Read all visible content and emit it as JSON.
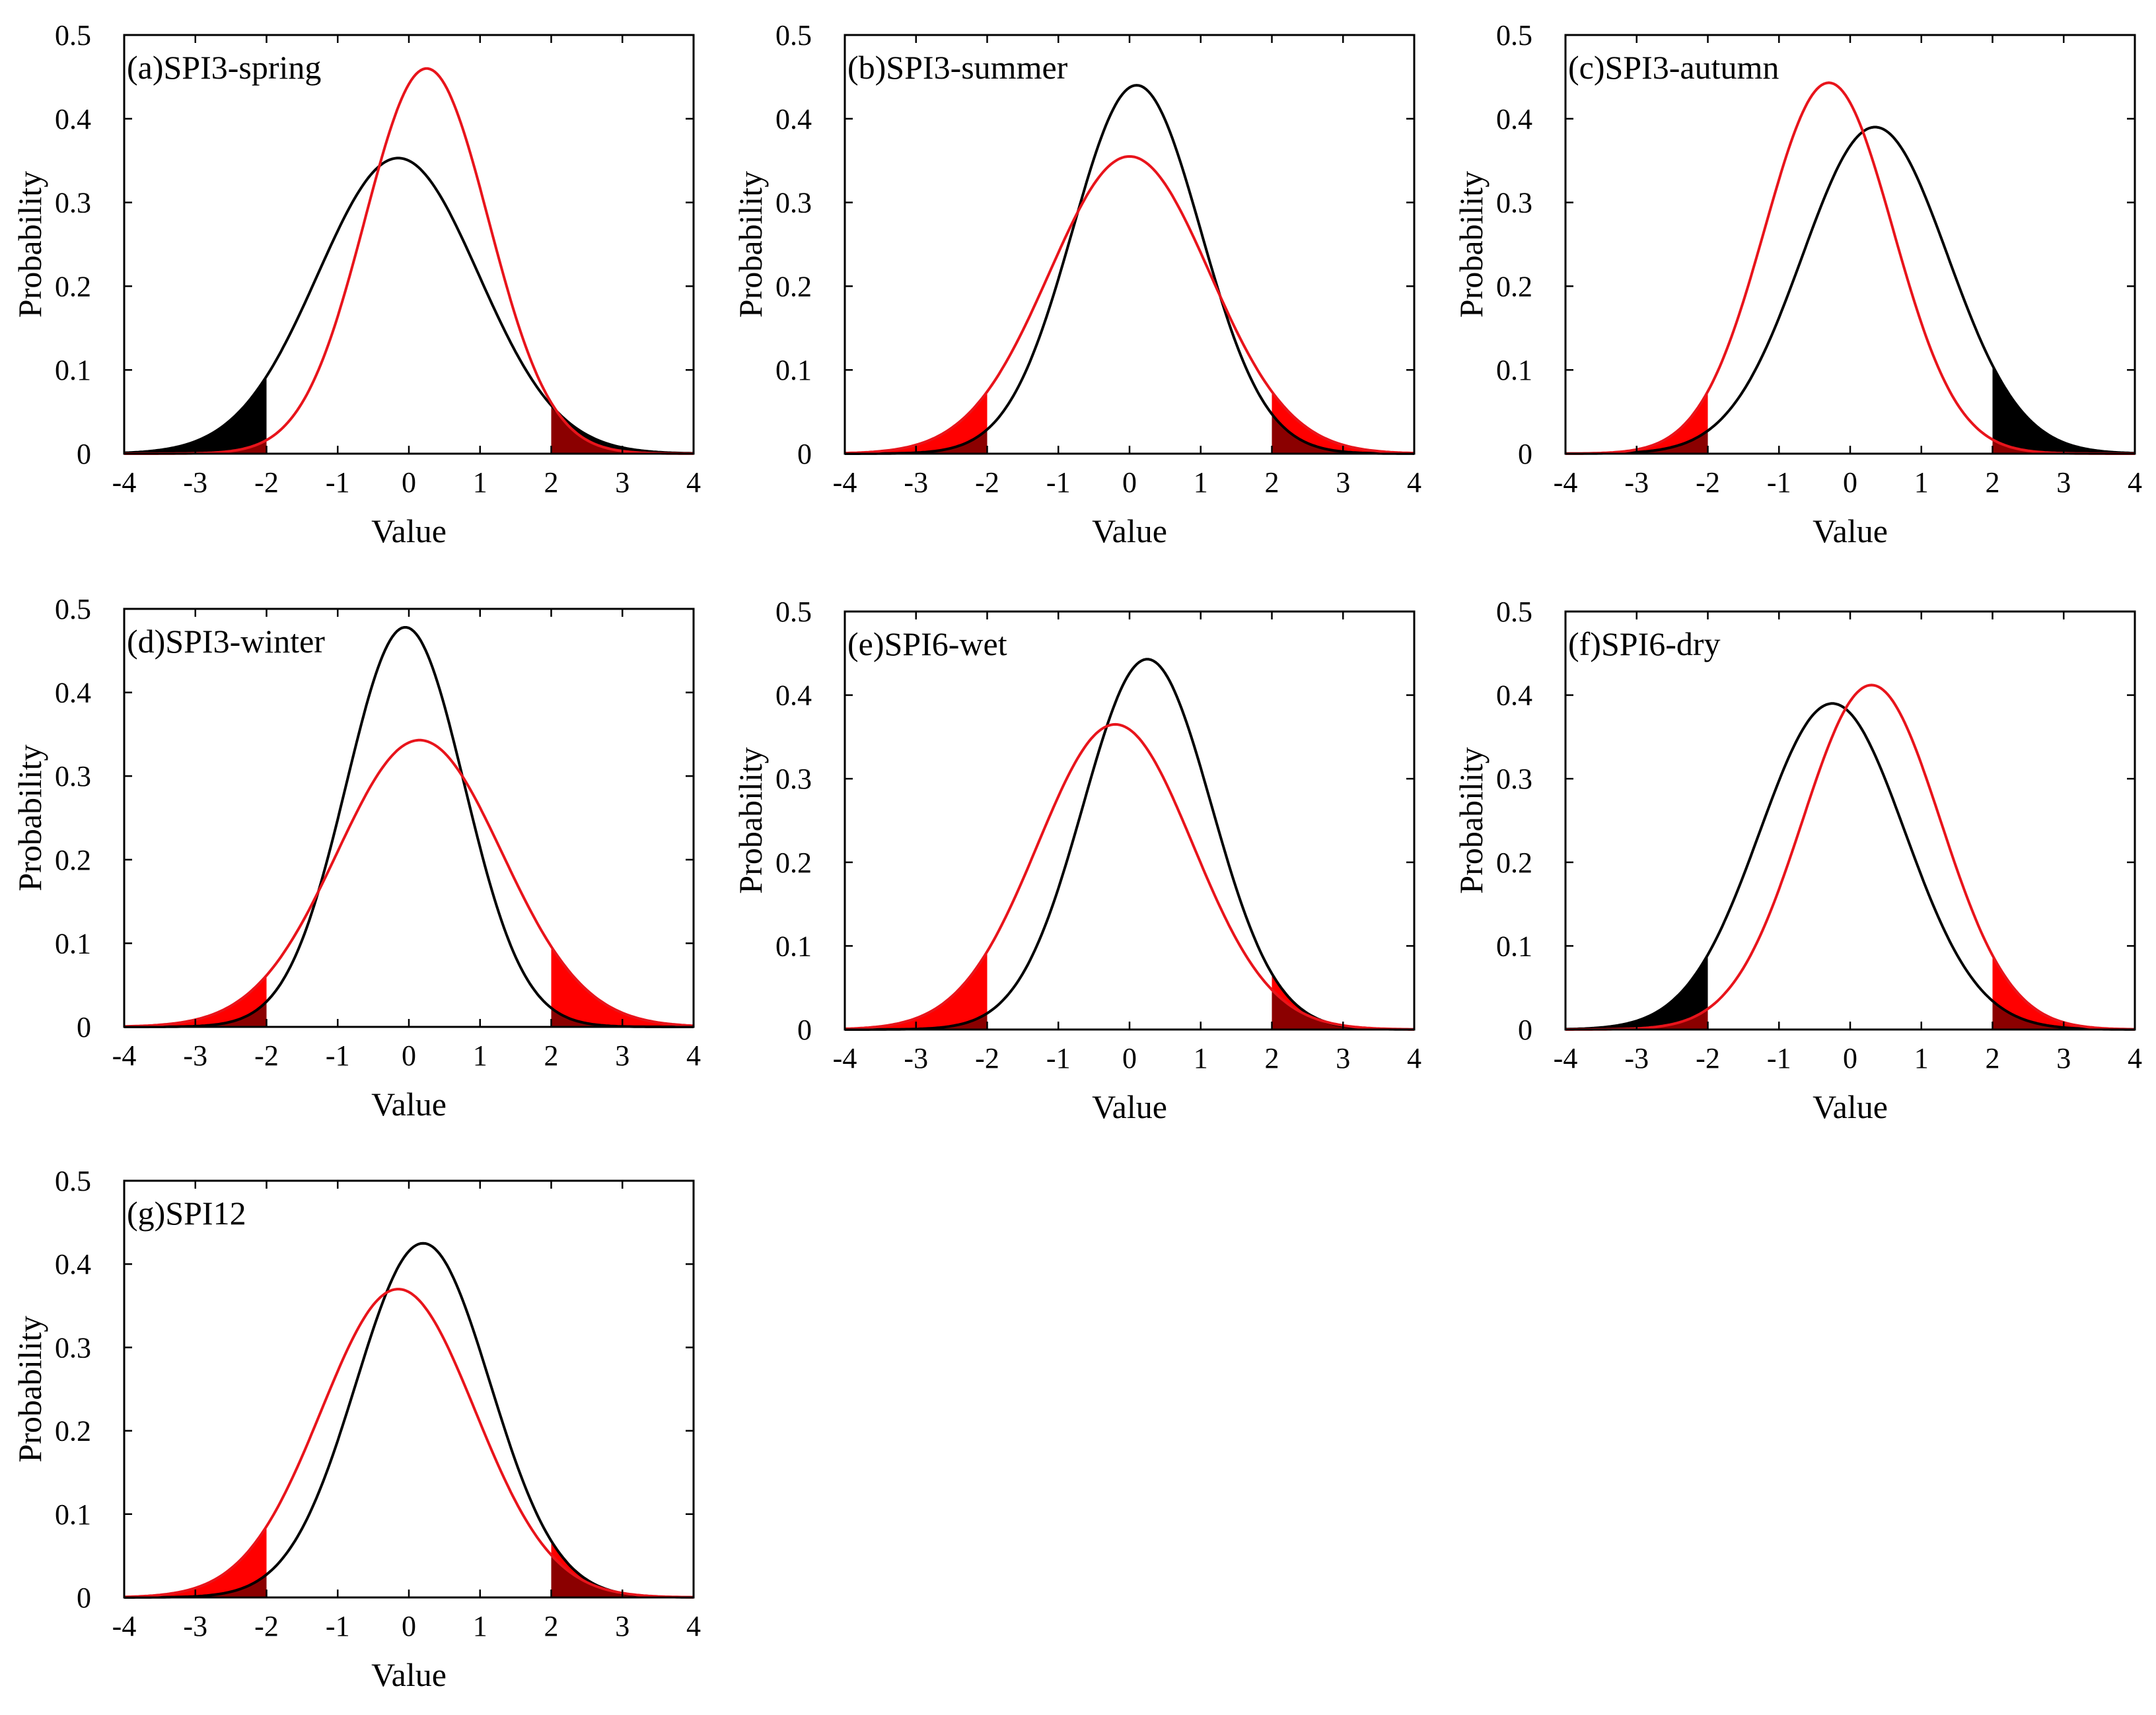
{
  "figure": {
    "x_tick_labels": [
      "-4",
      "-3",
      "-2",
      "-1",
      "0",
      "1",
      "2",
      "3",
      "4"
    ],
    "y_tick_labels": [
      "0",
      "0.1",
      "0.2",
      "0.3",
      "0.4",
      "0.5"
    ],
    "x_label": "Value",
    "y_label": "Probability",
    "colors": {
      "black_curve": "#000000",
      "red_curve": "#e8141b",
      "red_tail": "#ff0000",
      "black_tail": "#000000",
      "overlap_tail": "#8b0000"
    }
  },
  "chart_data": [
    {
      "type": "line",
      "title": "(a)SPI3-spring",
      "xlabel": "Value",
      "ylabel": "Probability",
      "xlim": [
        -4,
        4
      ],
      "ylim": [
        0,
        0.5
      ],
      "tail_threshold": 2,
      "series": [
        {
          "color": "black",
          "mean": -0.15,
          "std": 1.13,
          "peak": 0.353
        },
        {
          "color": "red",
          "mean": 0.25,
          "std": 0.87,
          "peak": 0.46
        }
      ]
    },
    {
      "type": "line",
      "title": "(b)SPI3-summer",
      "xlabel": "Value",
      "ylabel": "Probability",
      "xlim": [
        -4,
        4
      ],
      "ylim": [
        0,
        0.5
      ],
      "tail_threshold": 2,
      "series": [
        {
          "color": "black",
          "mean": 0.1,
          "std": 0.9,
          "peak": 0.44
        },
        {
          "color": "red",
          "mean": 0.0,
          "std": 1.13,
          "peak": 0.355
        }
      ]
    },
    {
      "type": "line",
      "title": "(c)SPI3-autumn",
      "xlabel": "Value",
      "ylabel": "Probability",
      "xlim": [
        -4,
        4
      ],
      "ylim": [
        0,
        0.5
      ],
      "tail_threshold": 2,
      "series": [
        {
          "color": "black",
          "mean": 0.35,
          "std": 1.02,
          "peak": 0.39
        },
        {
          "color": "red",
          "mean": -0.3,
          "std": 0.9,
          "peak": 0.443
        }
      ]
    },
    {
      "type": "line",
      "title": "(d)SPI3-winter",
      "xlabel": "Value",
      "ylabel": "Probability",
      "xlim": [
        -4,
        4
      ],
      "ylim": [
        0,
        0.5
      ],
      "tail_threshold": 2,
      "series": [
        {
          "color": "black",
          "mean": -0.05,
          "std": 0.83,
          "peak": 0.478
        },
        {
          "color": "red",
          "mean": 0.15,
          "std": 1.16,
          "peak": 0.343
        }
      ]
    },
    {
      "type": "line",
      "title": "(e)SPI6-wet",
      "xlabel": "Value",
      "ylabel": "Probability",
      "xlim": [
        -4,
        4
      ],
      "ylim": [
        0,
        0.5
      ],
      "tail_threshold": 2,
      "series": [
        {
          "color": "black",
          "mean": 0.25,
          "std": 0.9,
          "peak": 0.443
        },
        {
          "color": "red",
          "mean": -0.2,
          "std": 1.09,
          "peak": 0.365
        }
      ]
    },
    {
      "type": "line",
      "title": "(f)SPI6-dry",
      "xlabel": "Value",
      "ylabel": "Probability",
      "xlim": [
        -4,
        4
      ],
      "ylim": [
        0,
        0.5
      ],
      "tail_threshold": 2,
      "series": [
        {
          "color": "black",
          "mean": -0.25,
          "std": 1.02,
          "peak": 0.39
        },
        {
          "color": "red",
          "mean": 0.3,
          "std": 0.97,
          "peak": 0.412
        }
      ]
    },
    {
      "type": "line",
      "title": "(g)SPI12",
      "xlabel": "Value",
      "ylabel": "Probability",
      "xlim": [
        -4,
        4
      ],
      "ylim": [
        0,
        0.5
      ],
      "tail_threshold": 2,
      "series": [
        {
          "color": "black",
          "mean": 0.2,
          "std": 0.94,
          "peak": 0.425
        },
        {
          "color": "red",
          "mean": -0.15,
          "std": 1.08,
          "peak": 0.37
        }
      ]
    }
  ]
}
